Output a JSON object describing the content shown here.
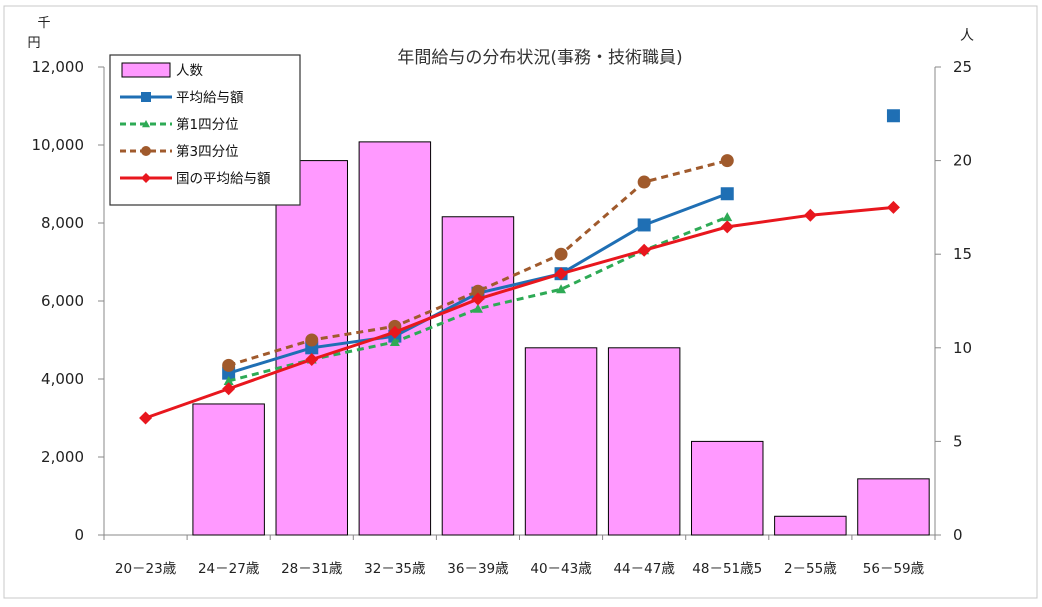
{
  "chart_data": {
    "type": "bar",
    "title": "年間給与の分布状況(事務・技術職員)",
    "y_left_unit_top": "千",
    "y_left_unit_bottom": "円",
    "y_right_unit": "人",
    "categories": [
      "20－23歳",
      "24－27歳",
      "28－31歳",
      "32－35歳",
      "36－39歳",
      "40－43歳",
      "44－47歳",
      "48－51歳",
      "52－55歳",
      "56－59歳"
    ],
    "category_labels_display": [
      "20－23歳",
      "24－27歳",
      "28－31歳",
      "32－35歳",
      "36－39歳",
      "40－43歳",
      "44－47歳",
      "48－51歳5",
      "2－55歳",
      "56－59歳"
    ],
    "y_left": {
      "min": 0,
      "max": 12000,
      "ticks": [
        "0",
        "2,000",
        "4,000",
        "6,000",
        "8,000",
        "10,000",
        "12,000"
      ],
      "tick_values": [
        0,
        2000,
        4000,
        6000,
        8000,
        10000,
        12000
      ]
    },
    "y_right": {
      "min": 0,
      "max": 25,
      "ticks": [
        "0",
        "5",
        "10",
        "15",
        "20",
        "25"
      ],
      "tick_values": [
        0,
        5,
        10,
        15,
        20,
        25
      ]
    },
    "legend_position": "top-left",
    "grid": false,
    "series": [
      {
        "name": "人数",
        "kind": "bar",
        "axis": "right",
        "color": "#FF99FF",
        "values": [
          0,
          7,
          20,
          21,
          17,
          10,
          10,
          5,
          1,
          3
        ]
      },
      {
        "name": "平均給与額",
        "kind": "line",
        "axis": "left",
        "color": "#1F6FB4",
        "marker": "square",
        "dash": "solid",
        "values": [
          null,
          4150,
          4800,
          5100,
          6200,
          6700,
          7950,
          8750,
          null,
          10750
        ]
      },
      {
        "name": "第1四分位",
        "kind": "line",
        "axis": "left",
        "color": "#2EAA55",
        "marker": "triangle",
        "dash": "dashed",
        "values": [
          null,
          3950,
          4500,
          4950,
          5800,
          6300,
          7300,
          8150,
          null,
          null
        ]
      },
      {
        "name": "第3四分位",
        "kind": "line",
        "axis": "left",
        "color": "#A05A2C",
        "marker": "circle",
        "dash": "dashed",
        "values": [
          null,
          4350,
          5000,
          5350,
          6250,
          7200,
          9050,
          9600,
          null,
          null
        ]
      },
      {
        "name": "国の平均給与額",
        "kind": "line",
        "axis": "left",
        "color": "#E8171E",
        "marker": "diamond",
        "dash": "solid",
        "values": [
          3000,
          3750,
          4500,
          5200,
          6050,
          6700,
          7300,
          7900,
          8200,
          8400
        ]
      }
    ]
  }
}
